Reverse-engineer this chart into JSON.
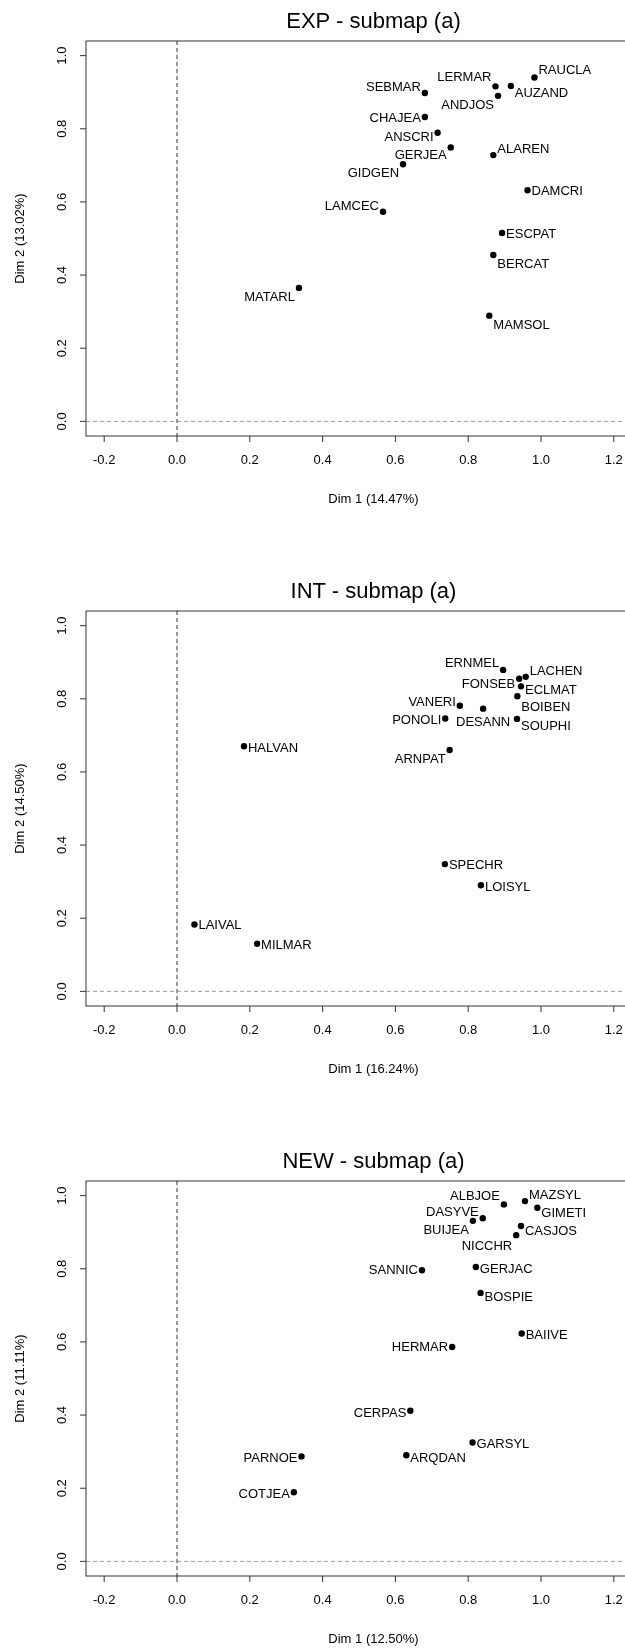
{
  "chart_data": [
    {
      "type": "scatter",
      "title": "EXP - submap (a)",
      "xlabel": "Dim 1 (14.47%)",
      "ylabel": "Dim 2 (13.02%)",
      "marker": "circle",
      "xlim": [
        -0.25,
        1.25
      ],
      "ylim": [
        -0.04,
        1.04
      ],
      "xticks": [
        {
          "value": -0.2,
          "label": "-0.2"
        },
        {
          "value": 0,
          "label": "0.0"
        },
        {
          "value": 0.2,
          "label": "0.2"
        },
        {
          "value": 0.4,
          "label": "0.4"
        },
        {
          "value": 0.6,
          "label": "0.6"
        },
        {
          "value": 0.8,
          "label": "0.8"
        },
        {
          "value": 1,
          "label": "1.0"
        },
        {
          "value": 1.2,
          "label": "1.2"
        }
      ],
      "yticks": [
        {
          "value": 0,
          "label": "0.0"
        },
        {
          "value": 0.2,
          "label": "0.2"
        },
        {
          "value": 0.4,
          "label": "0.4"
        },
        {
          "value": 0.6,
          "label": "0.6"
        },
        {
          "value": 0.8,
          "label": "0.8"
        },
        {
          "value": 1,
          "label": "1.0"
        }
      ],
      "ref_lines": [
        {
          "axis": "x",
          "value": 0,
          "color": "#000000",
          "line_style": "dashed"
        },
        {
          "axis": "y",
          "value": 0,
          "color": "#808080",
          "line_style": "dashed"
        }
      ],
      "series": [
        {
          "color": "#000000",
          "x": [
            0.982,
            0.917,
            0.875,
            0.882,
            0.681,
            0.681,
            0.716,
            0.752,
            0.869,
            0.621,
            0.963,
            0.566,
            0.893,
            0.869,
            0.335,
            0.858
          ],
          "values": [
            0.94,
            0.917,
            0.916,
            0.89,
            0.898,
            0.832,
            0.789,
            0.749,
            0.728,
            0.703,
            0.632,
            0.573,
            0.515,
            0.455,
            0.365,
            0.289
          ]
        }
      ],
      "annotations": [
        {
          "text": "RAUCLA",
          "x": 0.982,
          "y": 0.94
        },
        {
          "text": "AUZAND",
          "x": 0.917,
          "y": 0.917
        },
        {
          "text": "LERMAR",
          "x": 0.875,
          "y": 0.916
        },
        {
          "text": "ANDJOS",
          "x": 0.882,
          "y": 0.89
        },
        {
          "text": "SEBMAR",
          "x": 0.681,
          "y": 0.898
        },
        {
          "text": "CHAJEA",
          "x": 0.681,
          "y": 0.832
        },
        {
          "text": "ANSCRI",
          "x": 0.716,
          "y": 0.789
        },
        {
          "text": "GERJEA",
          "x": 0.752,
          "y": 0.749
        },
        {
          "text": "ALAREN",
          "x": 0.869,
          "y": 0.728
        },
        {
          "text": "GIDGEN",
          "x": 0.621,
          "y": 0.703
        },
        {
          "text": "DAMCRI",
          "x": 0.963,
          "y": 0.632
        },
        {
          "text": "LAMCEC",
          "x": 0.566,
          "y": 0.573
        },
        {
          "text": "ESCPAT",
          "x": 0.893,
          "y": 0.515
        },
        {
          "text": "BERCAT",
          "x": 0.869,
          "y": 0.455
        },
        {
          "text": "MATARL",
          "x": 0.335,
          "y": 0.365
        },
        {
          "text": "MAMSOL",
          "x": 0.858,
          "y": 0.289
        }
      ]
    },
    {
      "type": "scatter",
      "title": "INT - submap (a)",
      "xlabel": "Dim 1 (16.24%)",
      "ylabel": "Dim 2 (14.50%)",
      "marker": "circle",
      "xlim": [
        -0.25,
        1.25
      ],
      "ylim": [
        -0.04,
        1.04
      ],
      "xticks": [
        {
          "value": -0.2,
          "label": "-0.2"
        },
        {
          "value": 0,
          "label": "0.0"
        },
        {
          "value": 0.2,
          "label": "0.2"
        },
        {
          "value": 0.4,
          "label": "0.4"
        },
        {
          "value": 0.6,
          "label": "0.6"
        },
        {
          "value": 0.8,
          "label": "0.8"
        },
        {
          "value": 1,
          "label": "1.0"
        },
        {
          "value": 1.2,
          "label": "1.2"
        }
      ],
      "yticks": [
        {
          "value": 0,
          "label": "0.0"
        },
        {
          "value": 0.2,
          "label": "0.2"
        },
        {
          "value": 0.4,
          "label": "0.4"
        },
        {
          "value": 0.6,
          "label": "0.6"
        },
        {
          "value": 0.8,
          "label": "0.8"
        },
        {
          "value": 1,
          "label": "1.0"
        }
      ],
      "ref_lines": [
        {
          "axis": "x",
          "value": 0,
          "color": "#000000",
          "line_style": "dashed"
        },
        {
          "axis": "y",
          "value": 0,
          "color": "#808080",
          "line_style": "dashed"
        }
      ],
      "series": [
        {
          "color": "#000000",
          "x": [
            0.896,
            0.958,
            0.94,
            0.945,
            0.935,
            0.777,
            0.841,
            0.737,
            0.934,
            0.749,
            0.184,
            0.736,
            0.835,
            0.048,
            0.22
          ],
          "values": [
            0.879,
            0.86,
            0.855,
            0.834,
            0.807,
            0.781,
            0.773,
            0.746,
            0.745,
            0.66,
            0.67,
            0.348,
            0.29,
            0.183,
            0.13
          ]
        }
      ],
      "annotations": [
        {
          "text": "ERNMEL",
          "x": 0.896,
          "y": 0.879
        },
        {
          "text": "LACHEN",
          "x": 0.958,
          "y": 0.86
        },
        {
          "text": "FONSEB",
          "x": 0.94,
          "y": 0.855
        },
        {
          "text": "ECLMAT",
          "x": 0.945,
          "y": 0.834
        },
        {
          "text": "BOIBEN",
          "x": 0.935,
          "y": 0.807
        },
        {
          "text": "VANERI",
          "x": 0.777,
          "y": 0.781
        },
        {
          "text": "DESANN",
          "x": 0.841,
          "y": 0.773
        },
        {
          "text": "PONOLI",
          "x": 0.737,
          "y": 0.746
        },
        {
          "text": "SOUPHI",
          "x": 0.934,
          "y": 0.745
        },
        {
          "text": "ARNPAT",
          "x": 0.749,
          "y": 0.66
        },
        {
          "text": "HALVAN",
          "x": 0.184,
          "y": 0.67
        },
        {
          "text": "SPECHR",
          "x": 0.736,
          "y": 0.348
        },
        {
          "text": "LOISYL",
          "x": 0.835,
          "y": 0.29
        },
        {
          "text": "LAIVAL",
          "x": 0.048,
          "y": 0.183
        },
        {
          "text": "MILMAR",
          "x": 0.22,
          "y": 0.13
        }
      ]
    },
    {
      "type": "scatter",
      "title": "NEW - submap (a)",
      "xlabel": "Dim 1 (12.50%)",
      "ylabel": "Dim 2 (11.11%)",
      "marker": "circle",
      "xlim": [
        -0.25,
        1.25
      ],
      "ylim": [
        -0.04,
        1.04
      ],
      "xticks": [
        {
          "value": -0.2,
          "label": "-0.2"
        },
        {
          "value": 0,
          "label": "0.0"
        },
        {
          "value": 0.2,
          "label": "0.2"
        },
        {
          "value": 0.4,
          "label": "0.4"
        },
        {
          "value": 0.6,
          "label": "0.6"
        },
        {
          "value": 0.8,
          "label": "0.8"
        },
        {
          "value": 1,
          "label": "1.0"
        },
        {
          "value": 1.2,
          "label": "1.2"
        }
      ],
      "yticks": [
        {
          "value": 0,
          "label": "0.0"
        },
        {
          "value": 0.2,
          "label": "0.2"
        },
        {
          "value": 0.4,
          "label": "0.4"
        },
        {
          "value": 0.6,
          "label": "0.6"
        },
        {
          "value": 0.8,
          "label": "0.8"
        },
        {
          "value": 1,
          "label": "1.0"
        }
      ],
      "ref_lines": [
        {
          "axis": "x",
          "value": 0,
          "color": "#000000",
          "line_style": "dashed"
        },
        {
          "axis": "y",
          "value": 0,
          "color": "#808080",
          "line_style": "dashed"
        }
      ],
      "series": [
        {
          "color": "#000000",
          "x": [
            0.898,
            0.956,
            0.99,
            0.84,
            0.813,
            0.945,
            0.932,
            0.673,
            0.821,
            0.834,
            0.947,
            0.756,
            0.641,
            0.812,
            0.63,
            0.342,
            0.321
          ],
          "values": [
            0.976,
            0.985,
            0.967,
            0.938,
            0.931,
            0.917,
            0.892,
            0.796,
            0.805,
            0.734,
            0.623,
            0.586,
            0.412,
            0.325,
            0.29,
            0.287,
            0.189
          ]
        }
      ],
      "annotations": [
        {
          "text": "ALBJOE",
          "x": 0.898,
          "y": 0.976
        },
        {
          "text": "MAZSYL",
          "x": 0.956,
          "y": 0.985
        },
        {
          "text": "GIMETI",
          "x": 0.99,
          "y": 0.967
        },
        {
          "text": "DASYVE",
          "x": 0.84,
          "y": 0.938
        },
        {
          "text": "BUIJEA",
          "x": 0.813,
          "y": 0.931
        },
        {
          "text": "CASJOS",
          "x": 0.945,
          "y": 0.917
        },
        {
          "text": "NICCHR",
          "x": 0.932,
          "y": 0.892
        },
        {
          "text": "SANNIC",
          "x": 0.673,
          "y": 0.796
        },
        {
          "text": "GERJAC",
          "x": 0.821,
          "y": 0.805
        },
        {
          "text": "BOSPIE",
          "x": 0.834,
          "y": 0.734
        },
        {
          "text": "BAIIVE",
          "x": 0.947,
          "y": 0.623
        },
        {
          "text": "HERMAR",
          "x": 0.756,
          "y": 0.586
        },
        {
          "text": "CERPAS",
          "x": 0.641,
          "y": 0.412
        },
        {
          "text": "GARSYL",
          "x": 0.812,
          "y": 0.325
        },
        {
          "text": "ARQDAN",
          "x": 0.63,
          "y": 0.29
        },
        {
          "text": "PARNOE",
          "x": 0.342,
          "y": 0.287
        },
        {
          "text": "COTJEA",
          "x": 0.321,
          "y": 0.189
        }
      ]
    }
  ]
}
